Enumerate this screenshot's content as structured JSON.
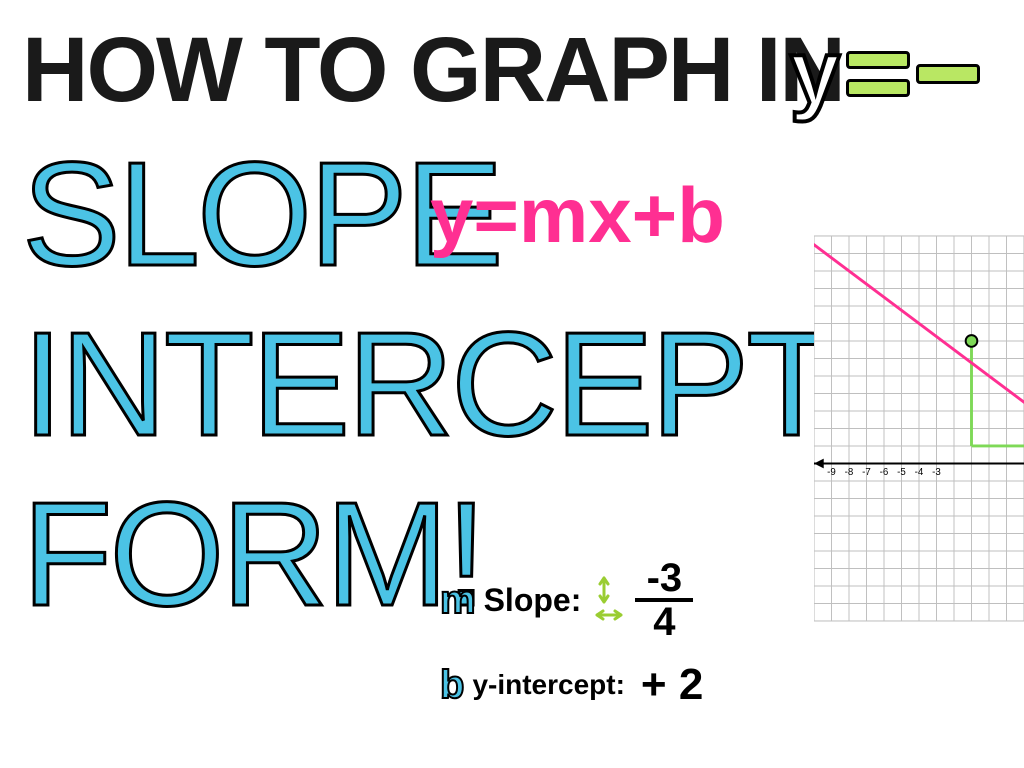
{
  "title": {
    "line1": "HOW TO GRAPH IN",
    "line2": "SLOPE",
    "line3": "INTERCEPT",
    "line4": "FORM!",
    "dark_color": "#1a1a1a",
    "cyan_color": "#4bc3e5",
    "stroke_color": "#000000",
    "line1_fontsize": 92,
    "big_fontsize": 148
  },
  "equation_top": {
    "y_char": "y",
    "bar_color": "#b9e763",
    "bar_border": "#000000",
    "fontsize": 90
  },
  "equation_mid": {
    "text": "y=mx+b",
    "color": "#ff2f92",
    "fontsize": 78
  },
  "slope": {
    "bubble_char": "m",
    "label": "Slope:",
    "numerator": "-3",
    "denominator": "4",
    "arrow_vert_color": "#9acd32",
    "arrow_horiz_color": "#9acd32",
    "bubble_color": "#4bc3e5",
    "fontsize": 40
  },
  "intercept": {
    "bubble_char": "b",
    "label": "y-intercept:",
    "value": "+ 2",
    "bubble_color": "#4bc3e5",
    "fontsize": 40
  },
  "graph": {
    "type": "line",
    "grid_color": "#bfbfbf",
    "bg_color": "#ffffff",
    "grid_cols": 12,
    "grid_rows": 22,
    "cell": 18,
    "x_ticks": [
      "-9",
      "-8",
      "-7",
      "-6",
      "-5",
      "-4",
      "-3"
    ],
    "x_tick_start_col": 1,
    "axis_row": 13,
    "axis_color": "#000000",
    "line_color": "#ff2f92",
    "line_width": 3,
    "line_p1": {
      "col": -2,
      "row": -1
    },
    "line_p2": {
      "col": 14,
      "row": 11
    },
    "arrow_at_p1": true,
    "point": {
      "col": 9,
      "row": 6,
      "fill": "#7ed957",
      "stroke": "#000000",
      "r": 6
    },
    "dropline": {
      "from_col": 9,
      "from_row": 6,
      "to_col": 9,
      "to_row": 12,
      "then_to_col": 12,
      "color": "#7ed957",
      "width": 3
    }
  },
  "colors": {
    "background": "#ffffff",
    "cyan": "#4bc3e5",
    "pink": "#ff2f92",
    "green": "#9acd32",
    "lime": "#b9e763",
    "point_green": "#7ed957"
  }
}
